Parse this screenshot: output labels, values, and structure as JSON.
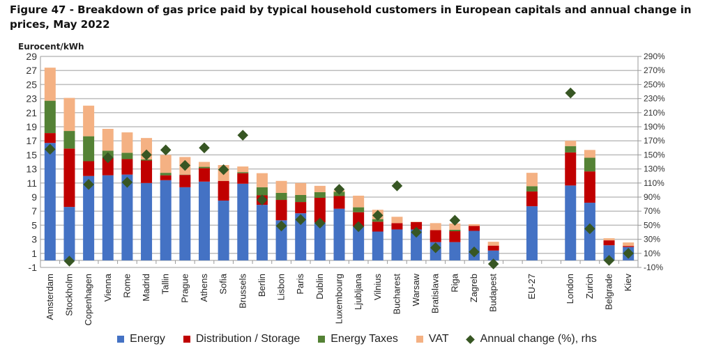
{
  "title": "Figure 47 - Breakdown of gas price paid by typical household customers in European capitals and annual change in prices, May 2022",
  "colors": {
    "energy": "#4472C4",
    "distribution": "#C00000",
    "taxes": "#548235",
    "vat": "#F4B183",
    "annual": "#375623"
  },
  "chart_data": {
    "type": "bar",
    "stacked": true,
    "title": "Figure 47 - Breakdown of gas price paid by typical household customers in European capitals and annual change in prices, May 2022",
    "ylabel": "Eurocent/kWh",
    "ylim": [
      -1,
      29
    ],
    "yticks": [
      "-1",
      "1",
      "3",
      "5",
      "7",
      "9",
      "11",
      "13",
      "15",
      "17",
      "19",
      "21",
      "23",
      "25",
      "27",
      "29"
    ],
    "y2lim": [
      -10,
      290
    ],
    "y2ticks": [
      "-10%",
      "10%",
      "30%",
      "50%",
      "70%",
      "90%",
      "110%",
      "130%",
      "150%",
      "170%",
      "190%",
      "210%",
      "230%",
      "250%",
      "270%",
      "290%"
    ],
    "grid": true,
    "legend_position": "bottom",
    "categories": [
      "Amsterdam",
      "Stockholm",
      "Copenhagen",
      "Vienna",
      "Rome",
      "Madrid",
      "Tallin",
      "Prague",
      "Athens",
      "Sofia",
      "Brussels",
      "Berlin",
      "Lisbon",
      "Paris",
      "Dublin",
      "Luxembourg",
      "Ljubljana",
      "Vilnius",
      "Bucharest",
      "Warsaw",
      "Bratislava",
      "Riga",
      "Zagreb",
      "Budapest",
      "",
      "EU-27",
      "",
      "London",
      "Zurich",
      "Belgrade",
      "Kiev"
    ],
    "series": [
      {
        "name": "Energy",
        "values": [
          16.7,
          7.6,
          12.0,
          12.1,
          12.2,
          11.0,
          11.4,
          10.4,
          11.2,
          8.5,
          10.9,
          7.9,
          5.7,
          6.7,
          5.4,
          7.35,
          4.8,
          4.1,
          4.4,
          4.4,
          2.6,
          2.6,
          4.2,
          1.4,
          null,
          7.7,
          null,
          10.65,
          8.2,
          2.15,
          1.9
        ]
      },
      {
        "name": "Distribution / Storage",
        "values": [
          1.4,
          8.3,
          2.1,
          2.5,
          2.2,
          3.2,
          0.7,
          1.75,
          1.9,
          2.8,
          1.5,
          1.35,
          2.9,
          1.6,
          3.5,
          1.8,
          2.05,
          1.4,
          0.9,
          1.05,
          1.7,
          1.55,
          0.7,
          0.7,
          null,
          2.1,
          null,
          4.7,
          4.45,
          0.7,
          0.15
        ]
      },
      {
        "name": "Energy Taxes",
        "values": [
          4.6,
          2.5,
          3.55,
          1.0,
          0.9,
          0.15,
          0.35,
          0.05,
          0.2,
          0,
          0.15,
          1.15,
          1.0,
          1.0,
          0.8,
          0.6,
          0.7,
          0.37,
          0,
          0,
          0,
          0.2,
          0,
          0,
          null,
          0.75,
          null,
          0.9,
          1.95,
          0,
          0
        ]
      },
      {
        "name": "VAT",
        "values": [
          4.7,
          4.7,
          4.35,
          3.1,
          2.9,
          3.05,
          2.55,
          2.5,
          0.7,
          2.25,
          0.8,
          2.0,
          1.7,
          1.7,
          0.9,
          0.2,
          1.65,
          1.33,
          0.9,
          0.05,
          1.0,
          0.9,
          0.25,
          0.55,
          null,
          1.9,
          null,
          0.75,
          1.1,
          0.3,
          0.5
        ]
      }
    ],
    "annual_change": {
      "name": "Annual change (%), rhs",
      "axis": "right",
      "values": [
        158,
        -1,
        108,
        146,
        111,
        150,
        157,
        135,
        160,
        129,
        178,
        86,
        49,
        58,
        53,
        101,
        48,
        64,
        106,
        40,
        18,
        57,
        12,
        -5,
        null,
        null,
        null,
        238,
        45,
        0,
        10
      ]
    }
  },
  "legend": {
    "energy": "Energy",
    "distribution": "Distribution / Storage",
    "taxes": "Energy Taxes",
    "vat": "VAT",
    "annual": "Annual change (%), rhs"
  }
}
